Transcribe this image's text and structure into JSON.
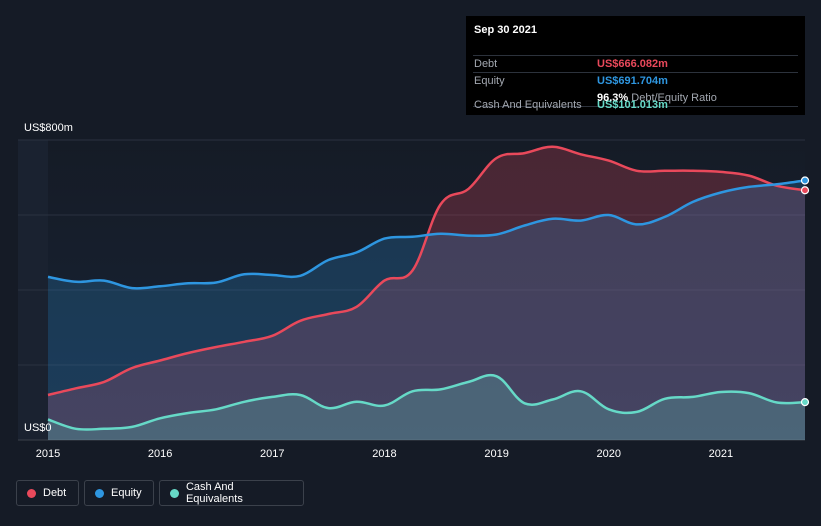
{
  "chart_data": {
    "type": "area",
    "title": "",
    "xlabel": "",
    "ylabel": "",
    "ylim": [
      0,
      800
    ],
    "y_axis_labels": {
      "top": "US$800m",
      "bottom": "US$0"
    },
    "x_ticks": [
      {
        "value": 2015,
        "label": "2015"
      },
      {
        "value": 2016,
        "label": "2016"
      },
      {
        "value": 2017,
        "label": "2017"
      },
      {
        "value": 2018,
        "label": "2018"
      },
      {
        "value": 2019,
        "label": "2019"
      },
      {
        "value": 2020,
        "label": "2020"
      },
      {
        "value": 2021,
        "label": "2021"
      }
    ],
    "x_range": [
      2015,
      2021.75
    ],
    "x": [
      2015.0,
      2015.25,
      2015.5,
      2015.75,
      2016.0,
      2016.25,
      2016.5,
      2016.75,
      2017.0,
      2017.25,
      2017.5,
      2017.75,
      2018.0,
      2018.25,
      2018.5,
      2018.75,
      2019.0,
      2019.25,
      2019.5,
      2019.75,
      2020.0,
      2020.25,
      2020.5,
      2020.75,
      2021.0,
      2021.25,
      2021.5,
      2021.75
    ],
    "series": [
      {
        "name": "Debt",
        "color": "#e9495b",
        "values": [
          120,
          138,
          155,
          192,
          212,
          232,
          248,
          262,
          278,
          318,
          336,
          355,
          425,
          452,
          628,
          670,
          752,
          765,
          782,
          762,
          745,
          718,
          718,
          718,
          715,
          705,
          678,
          666
        ]
      },
      {
        "name": "Equity",
        "color": "#2e96e0",
        "values": [
          435,
          422,
          425,
          405,
          410,
          418,
          420,
          442,
          440,
          438,
          480,
          500,
          537,
          542,
          550,
          545,
          548,
          572,
          590,
          585,
          600,
          575,
          595,
          635,
          660,
          675,
          682,
          692
        ]
      },
      {
        "name": "Cash And Equivalents",
        "color": "#66d9c7",
        "values": [
          55,
          30,
          30,
          35,
          58,
          72,
          82,
          102,
          115,
          120,
          85,
          102,
          92,
          130,
          135,
          155,
          170,
          98,
          108,
          130,
          82,
          75,
          110,
          115,
          128,
          125,
          100,
          101
        ]
      }
    ],
    "tooltip": {
      "date": "Sep 30 2021",
      "debt_label": "Debt",
      "debt_value": "US$666.082m",
      "equity_label": "Equity",
      "equity_value": "US$691.704m",
      "ratio_value": "96.3%",
      "ratio_label": "Debt/Equity Ratio",
      "cash_label": "Cash And Equivalents",
      "cash_value": "US$101.013m"
    },
    "legend": [
      {
        "label": "Debt",
        "color": "#e9495b"
      },
      {
        "label": "Equity",
        "color": "#2e96e0"
      },
      {
        "label": "Cash And Equivalents",
        "color": "#66d9c7"
      }
    ],
    "grid": true,
    "legend_position": "bottom-left"
  }
}
